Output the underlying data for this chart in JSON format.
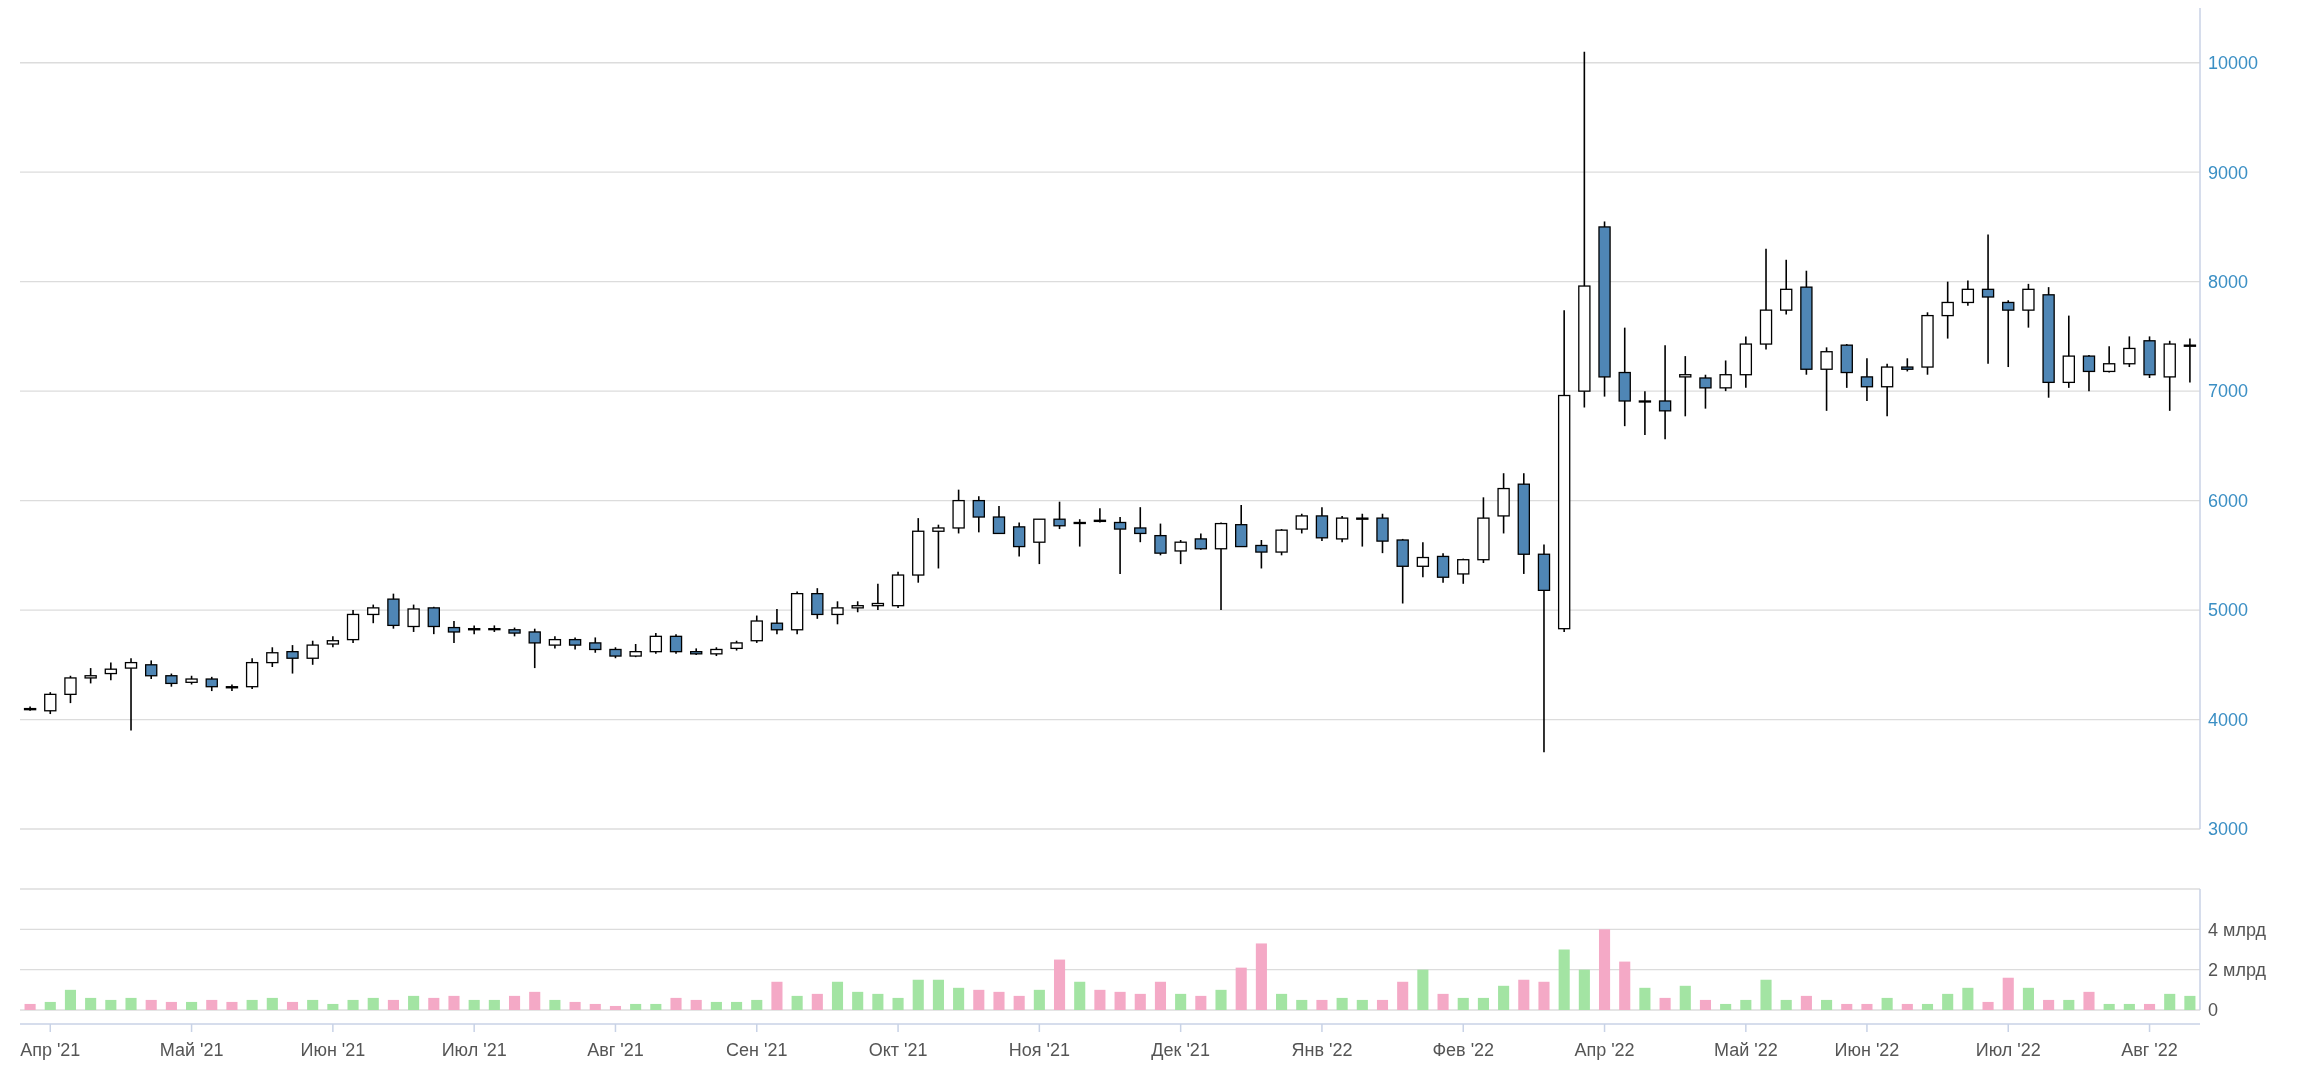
{
  "chart_data": [
    {
      "type": "candlestick",
      "tick_labels": "y",
      "grid": "y",
      "ohlc": [
        [
          4100,
          4120,
          4080,
          4090
        ],
        [
          4080,
          4250,
          4050,
          4230
        ],
        [
          4230,
          4400,
          4150,
          4380
        ],
        [
          4380,
          4470,
          4330,
          4400
        ],
        [
          4420,
          4520,
          4360,
          4460
        ],
        [
          4470,
          4560,
          3900,
          4520
        ],
        [
          4500,
          4540,
          4370,
          4400
        ],
        [
          4400,
          4420,
          4300,
          4330
        ],
        [
          4340,
          4400,
          4320,
          4370
        ],
        [
          4370,
          4390,
          4260,
          4300
        ],
        [
          4300,
          4320,
          4260,
          4290
        ],
        [
          4300,
          4560,
          4280,
          4520
        ],
        [
          4520,
          4660,
          4480,
          4610
        ],
        [
          4620,
          4680,
          4420,
          4560
        ],
        [
          4560,
          4720,
          4500,
          4680
        ],
        [
          4690,
          4760,
          4660,
          4720
        ],
        [
          4730,
          5000,
          4700,
          4960
        ],
        [
          4960,
          5050,
          4880,
          5020
        ],
        [
          5100,
          5150,
          4830,
          4860
        ],
        [
          4850,
          5050,
          4800,
          5010
        ],
        [
          5020,
          5030,
          4780,
          4850
        ],
        [
          4840,
          4900,
          4700,
          4800
        ],
        [
          4820,
          4860,
          4780,
          4830
        ],
        [
          4830,
          4860,
          4800,
          4830
        ],
        [
          4820,
          4840,
          4760,
          4790
        ],
        [
          4800,
          4830,
          4470,
          4700
        ],
        [
          4680,
          4760,
          4650,
          4730
        ],
        [
          4730,
          4750,
          4640,
          4680
        ],
        [
          4700,
          4750,
          4610,
          4640
        ],
        [
          4640,
          4660,
          4560,
          4580
        ],
        [
          4580,
          4690,
          4570,
          4620
        ],
        [
          4620,
          4790,
          4600,
          4760
        ],
        [
          4760,
          4780,
          4600,
          4620
        ],
        [
          4620,
          4650,
          4590,
          4600
        ],
        [
          4600,
          4660,
          4580,
          4640
        ],
        [
          4650,
          4720,
          4630,
          4700
        ],
        [
          4720,
          4950,
          4700,
          4900
        ],
        [
          4880,
          5010,
          4780,
          4820
        ],
        [
          4820,
          5170,
          4780,
          5150
        ],
        [
          5150,
          5200,
          4920,
          4960
        ],
        [
          4960,
          5080,
          4870,
          5020
        ],
        [
          5020,
          5080,
          4980,
          5040
        ],
        [
          5040,
          5240,
          5000,
          5060
        ],
        [
          5040,
          5350,
          5020,
          5320
        ],
        [
          5320,
          5840,
          5250,
          5720
        ],
        [
          5720,
          5780,
          5380,
          5750
        ],
        [
          5750,
          6100,
          5700,
          6000
        ],
        [
          6000,
          6040,
          5710,
          5850
        ],
        [
          5850,
          5950,
          5700,
          5700
        ],
        [
          5760,
          5800,
          5490,
          5580
        ],
        [
          5620,
          5830,
          5420,
          5830
        ],
        [
          5830,
          5990,
          5740,
          5770
        ],
        [
          5800,
          5830,
          5580,
          5800
        ],
        [
          5820,
          5930,
          5800,
          5810
        ],
        [
          5800,
          5850,
          5330,
          5740
        ],
        [
          5750,
          5940,
          5620,
          5700
        ],
        [
          5680,
          5790,
          5500,
          5520
        ],
        [
          5540,
          5640,
          5420,
          5620
        ],
        [
          5650,
          5700,
          5550,
          5560
        ],
        [
          5560,
          5800,
          5000,
          5790
        ],
        [
          5780,
          5960,
          5580,
          5580
        ],
        [
          5590,
          5640,
          5380,
          5530
        ],
        [
          5530,
          5740,
          5500,
          5730
        ],
        [
          5740,
          5880,
          5700,
          5860
        ],
        [
          5860,
          5940,
          5630,
          5660
        ],
        [
          5650,
          5860,
          5620,
          5840
        ],
        [
          5830,
          5880,
          5580,
          5840
        ],
        [
          5840,
          5880,
          5520,
          5630
        ],
        [
          5640,
          5650,
          5060,
          5400
        ],
        [
          5400,
          5620,
          5300,
          5480
        ],
        [
          5490,
          5520,
          5250,
          5300
        ],
        [
          5330,
          5470,
          5240,
          5460
        ],
        [
          5460,
          6030,
          5430,
          5840
        ],
        [
          5860,
          6250,
          5700,
          6110
        ],
        [
          6150,
          6250,
          5330,
          5510
        ],
        [
          5510,
          5600,
          3700,
          5180
        ],
        [
          4830,
          7740,
          4800,
          6960
        ],
        [
          7000,
          10100,
          6850,
          7960
        ],
        [
          8500,
          8550,
          6950,
          7130
        ],
        [
          7170,
          7580,
          6680,
          6910
        ],
        [
          6910,
          7000,
          6600,
          6910
        ],
        [
          6910,
          7420,
          6560,
          6820
        ],
        [
          7130,
          7320,
          6770,
          7150
        ],
        [
          7120,
          7150,
          6840,
          7030
        ],
        [
          7030,
          7280,
          7000,
          7150
        ],
        [
          7150,
          7500,
          7030,
          7430
        ],
        [
          7430,
          8300,
          7380,
          7740
        ],
        [
          7740,
          8200,
          7700,
          7930
        ],
        [
          7950,
          8100,
          7150,
          7200
        ],
        [
          7200,
          7400,
          6820,
          7360
        ],
        [
          7420,
          7430,
          7030,
          7170
        ],
        [
          7130,
          7300,
          6910,
          7040
        ],
        [
          7040,
          7250,
          6770,
          7220
        ],
        [
          7220,
          7300,
          7180,
          7200
        ],
        [
          7220,
          7720,
          7150,
          7690
        ],
        [
          7690,
          8000,
          7480,
          7810
        ],
        [
          7810,
          8010,
          7780,
          7930
        ],
        [
          7930,
          8430,
          7250,
          7860
        ],
        [
          7810,
          7830,
          7220,
          7740
        ],
        [
          7740,
          7980,
          7580,
          7930
        ],
        [
          7880,
          7950,
          6940,
          7080
        ],
        [
          7080,
          7690,
          7030,
          7320
        ],
        [
          7320,
          7330,
          7000,
          7180
        ],
        [
          7180,
          7410,
          7170,
          7250
        ],
        [
          7250,
          7500,
          7220,
          7390
        ],
        [
          7460,
          7500,
          7120,
          7150
        ],
        [
          7130,
          7460,
          6820,
          7430
        ],
        [
          7410,
          7480,
          7080,
          7420
        ]
      ],
      "ylim": [
        3000,
        10500
      ],
      "yticks": [
        3000,
        4000,
        5000,
        6000,
        7000,
        8000,
        9000,
        10000
      ]
    },
    {
      "type": "bar",
      "grid": "y",
      "categories": [
        null,
        "Апр '21",
        null,
        null,
        null,
        null,
        null,
        null,
        "Май '21",
        null,
        null,
        null,
        null,
        null,
        null,
        "Июн '21",
        null,
        null,
        null,
        null,
        null,
        null,
        "Июл '21",
        null,
        null,
        null,
        null,
        null,
        null,
        "Авг '21",
        null,
        null,
        null,
        null,
        null,
        null,
        "Сен '21",
        null,
        null,
        null,
        null,
        null,
        null,
        "Окт '21",
        null,
        null,
        null,
        null,
        null,
        null,
        "Ноя '21",
        null,
        null,
        null,
        null,
        null,
        null,
        "Дек '21",
        null,
        null,
        null,
        null,
        null,
        null,
        "Янв '22",
        null,
        null,
        null,
        null,
        null,
        null,
        "Фев '22",
        null,
        null,
        null,
        null,
        null,
        null,
        "Апр '22",
        null,
        null,
        null,
        null,
        null,
        null,
        "Май '22",
        null,
        null,
        null,
        null,
        null,
        "Июн '22",
        null,
        null,
        null,
        null,
        null,
        null,
        "Июл '22",
        null,
        null,
        null,
        null,
        null,
        null,
        "Авг '22",
        null,
        null
      ],
      "values": [
        0.3,
        0.4,
        1.0,
        0.6,
        0.5,
        0.6,
        0.5,
        0.4,
        0.4,
        0.5,
        0.4,
        0.5,
        0.6,
        0.4,
        0.5,
        0.3,
        0.5,
        0.6,
        0.5,
        0.7,
        0.6,
        0.7,
        0.5,
        0.5,
        0.7,
        0.9,
        0.5,
        0.4,
        0.3,
        0.2,
        0.3,
        0.3,
        0.6,
        0.5,
        0.4,
        0.4,
        0.5,
        1.4,
        0.7,
        0.8,
        1.4,
        0.9,
        0.8,
        0.6,
        1.5,
        1.5,
        1.1,
        1.0,
        0.9,
        0.7,
        1.0,
        2.5,
        1.4,
        1.0,
        0.9,
        0.8,
        1.4,
        0.8,
        0.7,
        1.0,
        2.1,
        3.3,
        0.8,
        0.5,
        0.5,
        0.6,
        0.5,
        0.5,
        1.4,
        2.0,
        0.8,
        0.6,
        0.6,
        1.2,
        1.5,
        1.4,
        3.0,
        2.0,
        4.0,
        2.4,
        1.1,
        0.6,
        1.2,
        0.5,
        0.3,
        0.5,
        1.5,
        0.5,
        0.7,
        0.5,
        0.3,
        0.3,
        0.6,
        0.3,
        0.3,
        0.8,
        1.1,
        0.4,
        1.6,
        1.1,
        0.5,
        0.5,
        0.9,
        0.3,
        0.3,
        0.3,
        0.8,
        0.7
      ],
      "colors": [
        "#f4a9c6",
        "#a3e4a3",
        "#a3e4a3",
        "#a3e4a3",
        "#a3e4a3",
        "#a3e4a3",
        "#f4a9c6",
        "#f4a9c6",
        "#a3e4a3",
        "#f4a9c6",
        "#f4a9c6",
        "#a3e4a3",
        "#a3e4a3",
        "#f4a9c6",
        "#a3e4a3",
        "#a3e4a3",
        "#a3e4a3",
        "#a3e4a3",
        "#f4a9c6",
        "#a3e4a3",
        "#f4a9c6",
        "#f4a9c6",
        "#a3e4a3",
        "#a3e4a3",
        "#f4a9c6",
        "#f4a9c6",
        "#a3e4a3",
        "#f4a9c6",
        "#f4a9c6",
        "#f4a9c6",
        "#a3e4a3",
        "#a3e4a3",
        "#f4a9c6",
        "#f4a9c6",
        "#a3e4a3",
        "#a3e4a3",
        "#a3e4a3",
        "#f4a9c6",
        "#a3e4a3",
        "#f4a9c6",
        "#a3e4a3",
        "#a3e4a3",
        "#a3e4a3",
        "#a3e4a3",
        "#a3e4a3",
        "#a3e4a3",
        "#a3e4a3",
        "#f4a9c6",
        "#f4a9c6",
        "#f4a9c6",
        "#a3e4a3",
        "#f4a9c6",
        "#a3e4a3",
        "#f4a9c6",
        "#f4a9c6",
        "#f4a9c6",
        "#f4a9c6",
        "#a3e4a3",
        "#f4a9c6",
        "#a3e4a3",
        "#f4a9c6",
        "#f4a9c6",
        "#a3e4a3",
        "#a3e4a3",
        "#f4a9c6",
        "#a3e4a3",
        "#a3e4a3",
        "#f4a9c6",
        "#f4a9c6",
        "#a3e4a3",
        "#f4a9c6",
        "#a3e4a3",
        "#a3e4a3",
        "#a3e4a3",
        "#f4a9c6",
        "#f4a9c6",
        "#a3e4a3",
        "#a3e4a3",
        "#f4a9c6",
        "#f4a9c6",
        "#a3e4a3",
        "#f4a9c6",
        "#a3e4a3",
        "#f4a9c6",
        "#a3e4a3",
        "#a3e4a3",
        "#a3e4a3",
        "#a3e4a3",
        "#f4a9c6",
        "#a3e4a3",
        "#f4a9c6",
        "#f4a9c6",
        "#a3e4a3",
        "#f4a9c6",
        "#a3e4a3",
        "#a3e4a3",
        "#a3e4a3",
        "#f4a9c6",
        "#f4a9c6",
        "#a3e4a3",
        "#f4a9c6",
        "#a3e4a3",
        "#f4a9c6",
        "#a3e4a3",
        "#a3e4a3",
        "#f4a9c6",
        "#a3e4a3",
        "#a3e4a3"
      ],
      "ylim": [
        0,
        6
      ],
      "yticks": [
        0,
        {
          "value": 2,
          "label": "2 млрд"
        },
        {
          "value": 4,
          "label": "4 млрд"
        }
      ]
    }
  ]
}
